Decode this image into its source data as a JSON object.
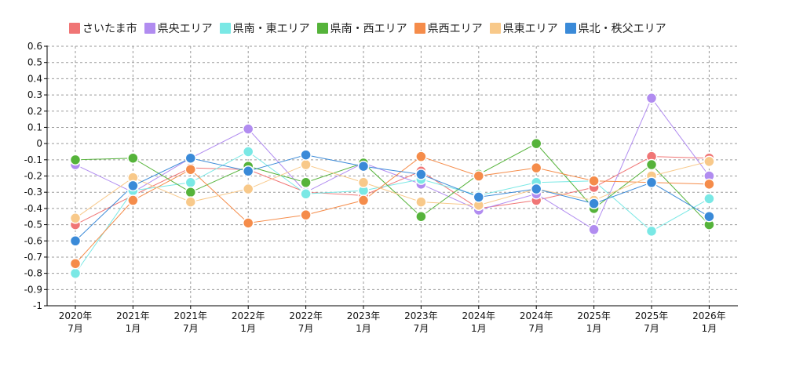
{
  "chart_data": {
    "type": "line",
    "title": "",
    "xlabel": "",
    "ylabel": "",
    "ylim": [
      -1,
      0.6
    ],
    "yticks": [
      "0.6",
      "0.5",
      "0.4",
      "0.3",
      "0.2",
      "0.1",
      "0",
      "-0.1",
      "-0.2",
      "-0.3",
      "-0.4",
      "-0.5",
      "-0.6",
      "-0.7",
      "-0.8",
      "-0.9",
      "-1"
    ],
    "ytick_values": [
      0.6,
      0.5,
      0.4,
      0.3,
      0.2,
      0.1,
      0,
      -0.1,
      -0.2,
      -0.3,
      -0.4,
      -0.5,
      -0.6,
      -0.7,
      -0.8,
      -0.9,
      -1
    ],
    "categories": [
      {
        "year": "2020年",
        "month": "7月"
      },
      {
        "year": "2021年",
        "month": "1月"
      },
      {
        "year": "2021年",
        "month": "7月"
      },
      {
        "year": "2022年",
        "month": "1月"
      },
      {
        "year": "2022年",
        "month": "7月"
      },
      {
        "year": "2023年",
        "month": "1月"
      },
      {
        "year": "2023年",
        "month": "7月"
      },
      {
        "year": "2024年",
        "month": "1月"
      },
      {
        "year": "2024年",
        "month": "7月"
      },
      {
        "year": "2025年",
        "month": "1月"
      },
      {
        "year": "2025年",
        "month": "7月"
      },
      {
        "year": "2026年",
        "month": "1月"
      }
    ],
    "series": [
      {
        "name": "さいたま市",
        "color": "#f07575",
        "values": [
          -0.5,
          -0.32,
          -0.15,
          -0.16,
          -0.3,
          -0.32,
          -0.17,
          -0.4,
          -0.35,
          -0.27,
          -0.08,
          -0.09
        ]
      },
      {
        "name": "県央エリア",
        "color": "#b18cf0",
        "values": [
          -0.13,
          -0.3,
          -0.09,
          0.09,
          -0.3,
          -0.12,
          -0.25,
          -0.41,
          -0.31,
          -0.53,
          0.28,
          -0.2
        ]
      },
      {
        "name": "県南・東エリア",
        "color": "#7ae8e5",
        "values": [
          -0.8,
          -0.29,
          -0.24,
          -0.05,
          -0.31,
          -0.29,
          -0.22,
          -0.32,
          -0.24,
          -0.23,
          -0.54,
          -0.34
        ]
      },
      {
        "name": "県南・西エリア",
        "color": "#55b33a",
        "values": [
          -0.1,
          -0.09,
          -0.3,
          -0.14,
          -0.24,
          -0.12,
          -0.45,
          -0.19,
          0.0,
          -0.4,
          -0.13,
          -0.5
        ]
      },
      {
        "name": "県西エリア",
        "color": "#f58c4a",
        "values": [
          -0.74,
          -0.35,
          -0.16,
          -0.49,
          -0.44,
          -0.35,
          -0.08,
          -0.2,
          -0.15,
          -0.23,
          -0.24,
          -0.25
        ]
      },
      {
        "name": "県東エリア",
        "color": "#f8c98a",
        "values": [
          -0.46,
          -0.21,
          -0.36,
          -0.28,
          -0.13,
          -0.24,
          -0.36,
          -0.38,
          -0.28,
          -0.35,
          -0.2,
          -0.11
        ]
      },
      {
        "name": "県北・秩父エリア",
        "color": "#3a8ad8",
        "values": [
          -0.6,
          -0.26,
          -0.09,
          -0.17,
          -0.07,
          -0.14,
          -0.19,
          -0.33,
          -0.28,
          -0.37,
          -0.24,
          -0.45
        ]
      }
    ]
  }
}
